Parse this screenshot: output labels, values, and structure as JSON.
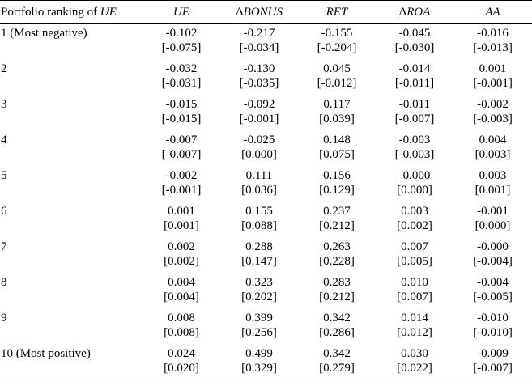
{
  "table": {
    "header": {
      "first_prefix": "Portfolio ranking of ",
      "first_var": "UE",
      "columns": [
        {
          "delta": "",
          "name": "UE"
        },
        {
          "delta": "Δ",
          "name": "BONUS"
        },
        {
          "delta": "",
          "name": "RET"
        },
        {
          "delta": "Δ",
          "name": "ROA"
        },
        {
          "delta": "",
          "name": "AA"
        }
      ]
    },
    "rows": [
      {
        "label": "1 (Most negative)",
        "values": [
          "-0.102",
          "-0.217",
          "-0.155",
          "-0.045",
          "-0.016"
        ],
        "brackets": [
          "[-0.075]",
          "[-0.034]",
          "[-0.204]",
          "[-0.030]",
          "[-0.013]"
        ]
      },
      {
        "label": "2",
        "values": [
          "-0.032",
          "-0.130",
          "0.045",
          "-0.014",
          "0.001"
        ],
        "brackets": [
          "[-0.031]",
          "[-0.035]",
          "[-0.012]",
          "[-0.011]",
          "[-0.001]"
        ]
      },
      {
        "label": "3",
        "values": [
          "-0.015",
          "-0.092",
          "0.117",
          "-0.011",
          "-0.002"
        ],
        "brackets": [
          "[-0.015]",
          "[-0.001]",
          "[0.039]",
          "[-0.007]",
          "[-0.003]"
        ]
      },
      {
        "label": "4",
        "values": [
          "-0.007",
          "-0.025",
          "0.148",
          "-0.003",
          "0.004"
        ],
        "brackets": [
          "[-0.007]",
          "[0.000]",
          "[0.075]",
          "[-0.003]",
          "[0.003]"
        ]
      },
      {
        "label": "5",
        "values": [
          "-0.002",
          "0.111",
          "0.156",
          "-0.000",
          "0.003"
        ],
        "brackets": [
          "[-0.001]",
          "[0.036]",
          "[0.129]",
          "[0.000]",
          "[0.001]"
        ]
      },
      {
        "label": "6",
        "values": [
          "0.001",
          "0.155",
          "0.237",
          "0.003",
          "-0.001"
        ],
        "brackets": [
          "[0.001]",
          "[0.088]",
          "[0.212]",
          "[0.002]",
          "[0.000]"
        ]
      },
      {
        "label": "7",
        "values": [
          "0.002",
          "0.288",
          "0.263",
          "0.007",
          "-0.000"
        ],
        "brackets": [
          "[0.002]",
          "[0.147]",
          "[0.228]",
          "[0.005]",
          "[-0.004]"
        ]
      },
      {
        "label": "8",
        "values": [
          "0.004",
          "0.323",
          "0.283",
          "0.010",
          "-0.004"
        ],
        "brackets": [
          "[0.004]",
          "[0.202]",
          "[0.212]",
          "[0.007]",
          "[-0.005]"
        ]
      },
      {
        "label": "9",
        "values": [
          "0.008",
          "0.399",
          "0.342",
          "0.014",
          "-0.010"
        ],
        "brackets": [
          "[0.008]",
          "[0.256]",
          "[0.286]",
          "[0.012]",
          "[-0.010]"
        ]
      },
      {
        "label": "10 (Most positive)",
        "values": [
          "0.024",
          "0.499",
          "0.342",
          "0.030",
          "-0.009"
        ],
        "brackets": [
          "[0.020]",
          "[0.329]",
          "[0.279]",
          "[0.022]",
          "[-0.007]"
        ]
      }
    ]
  }
}
